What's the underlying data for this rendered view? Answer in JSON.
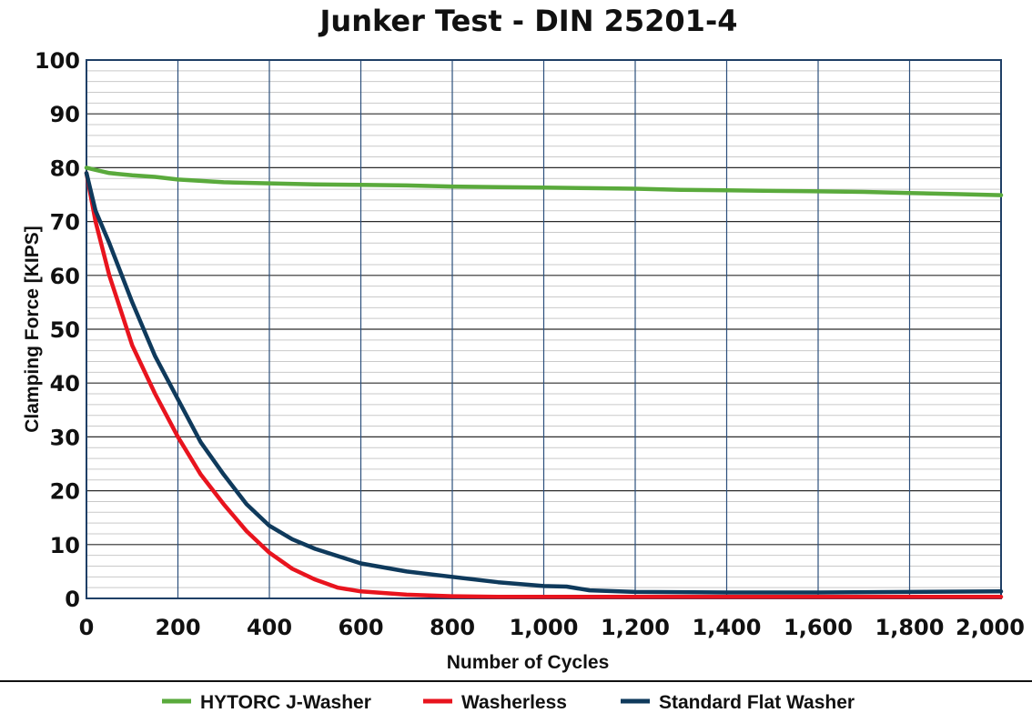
{
  "chart_data": {
    "type": "line",
    "title": "Junker Test - DIN 25201-4",
    "xlabel": "Number of Cycles",
    "ylabel": "Clamping Force [KIPS]",
    "xlim": [
      0,
      2000
    ],
    "ylim": [
      0,
      100
    ],
    "x_ticks": [
      "0",
      "200",
      "400",
      "600",
      "800",
      "1,000",
      "1,200",
      "1,400",
      "1,600",
      "1,800",
      "2,000"
    ],
    "y_ticks": [
      "0",
      "10",
      "20",
      "30",
      "40",
      "50",
      "60",
      "70",
      "80",
      "90",
      "100"
    ],
    "grid": true,
    "legend_position": "bottom",
    "series": [
      {
        "name": "HYTORC J-Washer",
        "color": "#5aaa3c",
        "x": [
          0,
          20,
          50,
          100,
          150,
          200,
          300,
          400,
          500,
          600,
          700,
          800,
          900,
          1000,
          1100,
          1200,
          1300,
          1400,
          1500,
          1600,
          1700,
          1800,
          1900,
          2000
        ],
        "y": [
          80,
          79.6,
          79,
          78.6,
          78.3,
          77.8,
          77.3,
          77.1,
          76.9,
          76.8,
          76.7,
          76.5,
          76.4,
          76.3,
          76.2,
          76.1,
          75.9,
          75.8,
          75.7,
          75.6,
          75.5,
          75.3,
          75.1,
          74.9
        ]
      },
      {
        "name": "Washerless",
        "color": "#e8141e",
        "x": [
          0,
          20,
          50,
          100,
          150,
          200,
          250,
          300,
          350,
          400,
          450,
          500,
          550,
          600,
          700,
          800,
          900,
          1000,
          1200,
          1400,
          1600,
          1800,
          2000
        ],
        "y": [
          79,
          70,
          60,
          47,
          38,
          30,
          23,
          17.5,
          12.5,
          8.5,
          5.5,
          3.5,
          2,
          1.3,
          0.7,
          0.4,
          0.3,
          0.3,
          0.3,
          0.3,
          0.3,
          0.3,
          0.3
        ]
      },
      {
        "name": "Standard Flat Washer",
        "color": "#0f3a5c",
        "x": [
          0,
          20,
          50,
          100,
          150,
          200,
          250,
          300,
          350,
          400,
          450,
          500,
          600,
          700,
          800,
          900,
          1000,
          1050,
          1100,
          1200,
          1400,
          1600,
          1800,
          2000
        ],
        "y": [
          79,
          72,
          66,
          55,
          45,
          37,
          29,
          23,
          17.5,
          13.5,
          11,
          9.2,
          6.5,
          5,
          4,
          3,
          2.3,
          2.2,
          1.5,
          1.2,
          1.1,
          1.1,
          1.2,
          1.3
        ]
      }
    ]
  }
}
